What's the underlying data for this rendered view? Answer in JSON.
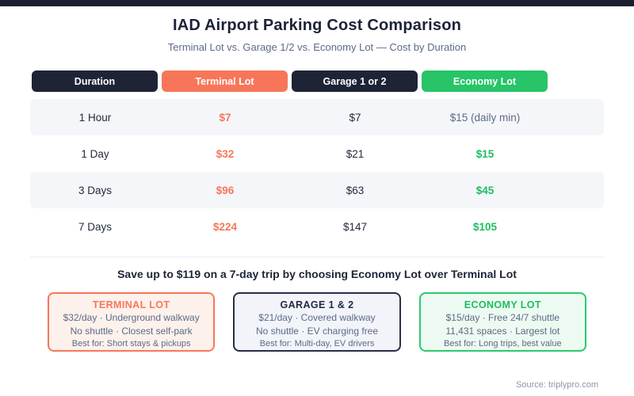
{
  "chart_data": {
    "type": "table",
    "title": "IAD Airport Parking Cost Comparison",
    "subtitle": "Terminal Lot vs. Garage 1/2 vs. Economy Lot — Cost by Duration",
    "columns": [
      "Duration",
      "Terminal Lot",
      "Garage 1 or 2",
      "Economy Lot"
    ],
    "rows": [
      [
        "1 Hour",
        "$7",
        "$7",
        "$15 (daily min)"
      ],
      [
        "1 Day",
        "$32",
        "$21",
        "$15"
      ],
      [
        "3 Days",
        "$96",
        "$63",
        "$45"
      ],
      [
        "7 Days",
        "$224",
        "$147",
        "$105"
      ]
    ],
    "annotation": "Save up to $119 on a 7-day trip by choosing Economy Lot over Terminal Lot",
    "source": "Source: triplypro.com",
    "legend_position": "none",
    "grid": false
  },
  "header": {
    "title": "IAD Airport Parking Cost Comparison",
    "subtitle": "Terminal Lot vs. Garage 1/2 vs. Economy Lot — Cost by Duration"
  },
  "table": {
    "headers": [
      {
        "label": "Duration"
      },
      {
        "label": "Terminal Lot"
      },
      {
        "label": "Garage 1 or 2"
      },
      {
        "label": "Economy Lot"
      }
    ],
    "rows": [
      {
        "duration": "1 Hour",
        "terminal": "$7",
        "garage": "$7",
        "economy": "$15 (daily min)"
      },
      {
        "duration": "1 Day",
        "terminal": "$32",
        "garage": "$21",
        "economy": "$15"
      },
      {
        "duration": "3 Days",
        "terminal": "$96",
        "garage": "$63",
        "economy": "$45"
      },
      {
        "duration": "7 Days",
        "terminal": "$224",
        "garage": "$147",
        "economy": "$105"
      }
    ]
  },
  "banner": {
    "text": "Save up to $119 on a 7-day trip by choosing Economy Lot over Terminal Lot"
  },
  "cards": [
    {
      "title": "TERMINAL LOT",
      "line1": "$32/day · Underground walkway",
      "line2": "No shuttle · Closest self-park",
      "line3": "Best for: Short stays & pickups"
    },
    {
      "title": "GARAGE 1 & 2",
      "line1": "$21/day · Covered walkway",
      "line2": "No shuttle · EV charging free",
      "line3": "Best for: Multi-day, EV drivers"
    },
    {
      "title": "ECONOMY LOT",
      "line1": "$15/day · Free 24/7 shuttle",
      "line2": "11,431 spaces · Largest lot",
      "line3": "Best for: Long trips, best value"
    }
  ],
  "footer": {
    "source": "Source: triplypro.com"
  },
  "colors": {
    "navy": "#1e2336",
    "coral": "#f7765a",
    "green": "#27c468",
    "green_value_text": "#1ebd61",
    "muted_text": "#5c6b85",
    "alt_row_bg": "#f5f6f9",
    "topbar": "#1a1e30",
    "card_coral_bg": "#fdf1ec",
    "card_navy_bg": "#f2f4fa",
    "card_green_bg": "#edfaf1",
    "footer_text": "#8d97a8"
  }
}
